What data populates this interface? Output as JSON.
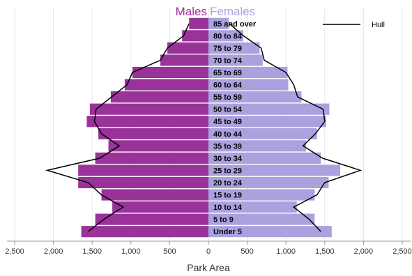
{
  "chart_data": {
    "type": "bar",
    "orientation": "horizontal-population-pyramid",
    "title_left": "Males",
    "title_right": "Females",
    "xlabel": "Park Area",
    "xlim": [
      -2500,
      2500
    ],
    "xticks": [
      -2500,
      -2000,
      -1500,
      -1000,
      -500,
      0,
      500,
      1000,
      1500,
      2000,
      2500
    ],
    "xtick_labels": [
      "2,500",
      "2,000",
      "1,500",
      "1,000",
      "500",
      "0",
      "500",
      "1,000",
      "1,500",
      "2,000",
      "2,500"
    ],
    "categories": [
      "85 and over",
      "80 to 84",
      "75 to 79",
      "70 to 74",
      "65 to 69",
      "60 to 64",
      "55 to 59",
      "50 to 54",
      "45 to 49",
      "40 to 44",
      "35 to 39",
      "30 to 34",
      "25 to 29",
      "20 to 24",
      "15 to 19",
      "10 to 14",
      "5 to 9",
      "Under 5"
    ],
    "series": [
      {
        "name": "Males",
        "color": "#993399",
        "values": [
          250,
          340,
          530,
          620,
          980,
          1080,
          1260,
          1530,
          1570,
          1420,
          1290,
          1460,
          1680,
          1680,
          1380,
          1240,
          1460,
          1640
        ]
      },
      {
        "name": "Females",
        "color": "#aaa2de",
        "values": [
          260,
          450,
          660,
          700,
          1020,
          1030,
          1200,
          1560,
          1520,
          1400,
          1260,
          1450,
          1700,
          1550,
          1370,
          1140,
          1370,
          1590
        ]
      },
      {
        "name": "Hull",
        "type": "line",
        "color": "#000000",
        "left_values": [
          250,
          320,
          530,
          620,
          980,
          1050,
          1250,
          1450,
          1470,
          1380,
          1150,
          1400,
          2080,
          1550,
          1380,
          1100,
          1350,
          1550
        ],
        "right_values": [
          270,
          450,
          680,
          720,
          1000,
          1100,
          1150,
          1480,
          1500,
          1380,
          1220,
          1470,
          1960,
          1500,
          1400,
          1100,
          1300,
          1450
        ]
      }
    ],
    "legend": {
      "position": "top-right",
      "label": "Hull"
    },
    "grid": true
  }
}
